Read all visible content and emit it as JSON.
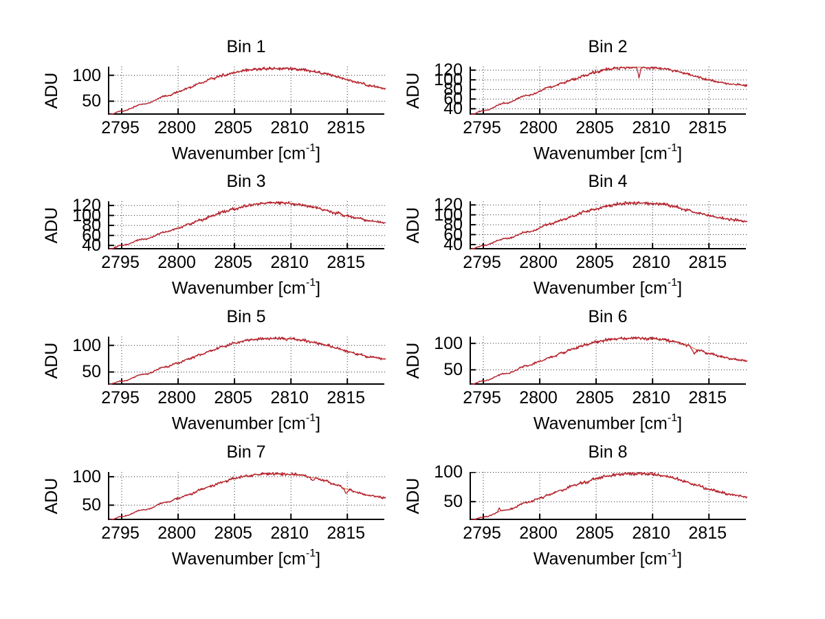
{
  "figure": {
    "background": "#ffffff",
    "ylabel": "ADU",
    "xlabel_main": "Wavenumber [cm",
    "xlabel_sup": "-1",
    "xlabel_end": "]",
    "x_ticks": [
      2795,
      2800,
      2805,
      2810,
      2815
    ],
    "xlim": [
      2793.9,
      2818.4
    ],
    "grid": "dotted",
    "legend": "none",
    "axis_color": "#000000",
    "grid_color": "#000000",
    "line_color": "#b22230",
    "line_underlay_color": "#e0603a"
  },
  "chart_data": [
    {
      "type": "line",
      "title": "Bin 1",
      "xlabel": "Wavenumber [cm^-1]",
      "ylabel": "ADU",
      "x_ticks": [
        2795,
        2800,
        2805,
        2810,
        2815
      ],
      "y_ticks": [
        50,
        100
      ],
      "x_range": [
        2793.9,
        2818.4
      ],
      "series_anchors": [
        [
          2793.9,
          24
        ],
        [
          2795,
          31
        ],
        [
          2797,
          45
        ],
        [
          2799,
          60
        ],
        [
          2800,
          68
        ],
        [
          2801,
          76
        ],
        [
          2802,
          85
        ],
        [
          2803,
          93
        ],
        [
          2804,
          100
        ],
        [
          2805,
          105
        ],
        [
          2806,
          110
        ],
        [
          2807,
          112
        ],
        [
          2808,
          113
        ],
        [
          2809,
          113
        ],
        [
          2810,
          113
        ],
        [
          2811,
          111
        ],
        [
          2812,
          107
        ],
        [
          2813,
          103
        ],
        [
          2814,
          98
        ],
        [
          2815,
          92
        ],
        [
          2816,
          86
        ],
        [
          2817,
          80
        ],
        [
          2818.4,
          74
        ]
      ],
      "noise_amplitude": 4,
      "spikes": [],
      "seed": 11
    },
    {
      "type": "line",
      "title": "Bin 2",
      "xlabel": "Wavenumber [cm^-1]",
      "ylabel": "ADU",
      "x_ticks": [
        2795,
        2800,
        2805,
        2810,
        2815
      ],
      "y_ticks": [
        40,
        60,
        80,
        100,
        120
      ],
      "x_range": [
        2793.9,
        2818.4
      ],
      "series_anchors": [
        [
          2793.9,
          28
        ],
        [
          2795,
          36
        ],
        [
          2797,
          52
        ],
        [
          2799,
          68
        ],
        [
          2801,
          85
        ],
        [
          2802,
          93
        ],
        [
          2803,
          101
        ],
        [
          2804,
          109
        ],
        [
          2805,
          116
        ],
        [
          2806,
          122
        ],
        [
          2807,
          125
        ],
        [
          2808,
          126
        ],
        [
          2809,
          126
        ],
        [
          2810,
          125
        ],
        [
          2811,
          123
        ],
        [
          2812,
          119
        ],
        [
          2813,
          112
        ],
        [
          2814,
          106
        ],
        [
          2815,
          100
        ],
        [
          2816,
          95
        ],
        [
          2817,
          91
        ],
        [
          2818.4,
          88
        ]
      ],
      "noise_amplitude": 4,
      "spikes": [
        {
          "x": 2808.8,
          "depth": 22,
          "width": 0.18
        }
      ],
      "seed": 22
    },
    {
      "type": "line",
      "title": "Bin 3",
      "xlabel": "Wavenumber [cm^-1]",
      "ylabel": "ADU",
      "x_ticks": [
        2795,
        2800,
        2805,
        2810,
        2815
      ],
      "y_ticks": [
        40,
        60,
        80,
        100,
        120
      ],
      "x_range": [
        2793.9,
        2818.4
      ],
      "series_anchors": [
        [
          2793.9,
          33
        ],
        [
          2795,
          40
        ],
        [
          2797,
          53
        ],
        [
          2799,
          67
        ],
        [
          2800,
          75
        ],
        [
          2801,
          83
        ],
        [
          2802,
          91
        ],
        [
          2803,
          99
        ],
        [
          2804,
          107
        ],
        [
          2805,
          113
        ],
        [
          2806,
          119
        ],
        [
          2807,
          123
        ],
        [
          2808,
          125
        ],
        [
          2809,
          125
        ],
        [
          2810,
          124
        ],
        [
          2811,
          121
        ],
        [
          2812,
          117
        ],
        [
          2813,
          111
        ],
        [
          2814,
          105
        ],
        [
          2815,
          99
        ],
        [
          2816,
          94
        ],
        [
          2817,
          89
        ],
        [
          2818.4,
          85
        ]
      ],
      "noise_amplitude": 4.5,
      "spikes": [],
      "seed": 33
    },
    {
      "type": "line",
      "title": "Bin 4",
      "xlabel": "Wavenumber [cm^-1]",
      "ylabel": "ADU",
      "x_ticks": [
        2795,
        2800,
        2805,
        2810,
        2815
      ],
      "y_ticks": [
        40,
        60,
        80,
        100,
        120
      ],
      "x_range": [
        2793.9,
        2818.4
      ],
      "series_anchors": [
        [
          2793.9,
          31
        ],
        [
          2795,
          38
        ],
        [
          2797,
          52
        ],
        [
          2799,
          66
        ],
        [
          2801,
          82
        ],
        [
          2802,
          90
        ],
        [
          2803,
          98
        ],
        [
          2804,
          106
        ],
        [
          2805,
          112
        ],
        [
          2806,
          118
        ],
        [
          2807,
          122
        ],
        [
          2808,
          124
        ],
        [
          2809,
          124
        ],
        [
          2810,
          123
        ],
        [
          2811,
          121
        ],
        [
          2812,
          117
        ],
        [
          2813,
          110
        ],
        [
          2814,
          104
        ],
        [
          2815,
          99
        ],
        [
          2816,
          94
        ],
        [
          2817,
          90
        ],
        [
          2818.4,
          87
        ]
      ],
      "noise_amplitude": 4.5,
      "spikes": [],
      "seed": 44
    },
    {
      "type": "line",
      "title": "Bin 5",
      "xlabel": "Wavenumber [cm^-1]",
      "ylabel": "ADU",
      "x_ticks": [
        2795,
        2800,
        2805,
        2810,
        2815
      ],
      "y_ticks": [
        50,
        100
      ],
      "x_range": [
        2793.9,
        2818.4
      ],
      "series_anchors": [
        [
          2793.9,
          27
        ],
        [
          2795,
          33
        ],
        [
          2797,
          46
        ],
        [
          2799,
          60
        ],
        [
          2800,
          67
        ],
        [
          2801,
          75
        ],
        [
          2802,
          83
        ],
        [
          2803,
          91
        ],
        [
          2804,
          98
        ],
        [
          2805,
          104
        ],
        [
          2806,
          109
        ],
        [
          2807,
          112
        ],
        [
          2808,
          113
        ],
        [
          2809,
          113
        ],
        [
          2810,
          112
        ],
        [
          2811,
          110
        ],
        [
          2812,
          106
        ],
        [
          2813,
          101
        ],
        [
          2814,
          95
        ],
        [
          2815,
          89
        ],
        [
          2816,
          83
        ],
        [
          2817,
          78
        ],
        [
          2818.4,
          74
        ]
      ],
      "noise_amplitude": 4,
      "spikes": [],
      "seed": 55
    },
    {
      "type": "line",
      "title": "Bin 6",
      "xlabel": "Wavenumber [cm^-1]",
      "ylabel": "ADU",
      "x_ticks": [
        2795,
        2800,
        2805,
        2810,
        2815
      ],
      "y_ticks": [
        50,
        100
      ],
      "x_range": [
        2793.9,
        2818.4
      ],
      "series_anchors": [
        [
          2793.9,
          22
        ],
        [
          2795,
          29
        ],
        [
          2797,
          43
        ],
        [
          2799,
          58
        ],
        [
          2800,
          66
        ],
        [
          2801,
          74
        ],
        [
          2802,
          82
        ],
        [
          2803,
          90
        ],
        [
          2804,
          97
        ],
        [
          2805,
          103
        ],
        [
          2806,
          107
        ],
        [
          2807,
          109
        ],
        [
          2808,
          110
        ],
        [
          2809,
          110
        ],
        [
          2810,
          109
        ],
        [
          2811,
          107
        ],
        [
          2812,
          103
        ],
        [
          2813,
          97
        ],
        [
          2814,
          88
        ],
        [
          2815,
          81
        ],
        [
          2816,
          76
        ],
        [
          2817,
          71
        ],
        [
          2818.4,
          67
        ]
      ],
      "noise_amplitude": 4,
      "spikes": [
        {
          "x": 2813.7,
          "depth": 9,
          "width": 0.35
        }
      ],
      "seed": 66
    },
    {
      "type": "line",
      "title": "Bin 7",
      "xlabel": "Wavenumber [cm^-1]",
      "ylabel": "ADU",
      "x_ticks": [
        2795,
        2800,
        2805,
        2810,
        2815
      ],
      "y_ticks": [
        50,
        100
      ],
      "x_range": [
        2793.9,
        2818.4
      ],
      "series_anchors": [
        [
          2793.9,
          24
        ],
        [
          2795,
          30
        ],
        [
          2797,
          42
        ],
        [
          2799,
          55
        ],
        [
          2800,
          62
        ],
        [
          2801,
          69
        ],
        [
          2802,
          77
        ],
        [
          2803,
          84
        ],
        [
          2804,
          91
        ],
        [
          2805,
          97
        ],
        [
          2806,
          101
        ],
        [
          2807,
          104
        ],
        [
          2808,
          105
        ],
        [
          2809,
          105
        ],
        [
          2810,
          104
        ],
        [
          2811,
          102
        ],
        [
          2812,
          98
        ],
        [
          2813,
          93
        ],
        [
          2814,
          86
        ],
        [
          2815,
          78
        ],
        [
          2816,
          72
        ],
        [
          2817,
          67
        ],
        [
          2818.4,
          63
        ]
      ],
      "noise_amplitude": 3.5,
      "spikes": [
        {
          "x": 2811.9,
          "depth": 6,
          "width": 0.25
        },
        {
          "x": 2814.9,
          "depth": 8,
          "width": 0.3
        }
      ],
      "seed": 77
    },
    {
      "type": "line",
      "title": "Bin 8",
      "xlabel": "Wavenumber [cm^-1]",
      "ylabel": "ADU",
      "x_ticks": [
        2795,
        2800,
        2805,
        2810,
        2815
      ],
      "y_ticks": [
        50,
        100
      ],
      "x_range": [
        2793.9,
        2818.4
      ],
      "series_anchors": [
        [
          2793.9,
          19
        ],
        [
          2795,
          24
        ],
        [
          2797,
          36
        ],
        [
          2799,
          49
        ],
        [
          2800,
          56
        ],
        [
          2801,
          63
        ],
        [
          2802,
          70
        ],
        [
          2803,
          77
        ],
        [
          2804,
          83
        ],
        [
          2805,
          89
        ],
        [
          2806,
          93
        ],
        [
          2807,
          96
        ],
        [
          2808,
          97
        ],
        [
          2809,
          97
        ],
        [
          2810,
          96
        ],
        [
          2811,
          94
        ],
        [
          2812,
          89
        ],
        [
          2813,
          83
        ],
        [
          2814,
          77
        ],
        [
          2815,
          71
        ],
        [
          2816,
          66
        ],
        [
          2817,
          62
        ],
        [
          2818.4,
          58
        ]
      ],
      "noise_amplitude": 4,
      "spikes": [
        {
          "x": 2796.4,
          "depth": -5,
          "width": 0.15
        }
      ],
      "seed": 88
    }
  ]
}
